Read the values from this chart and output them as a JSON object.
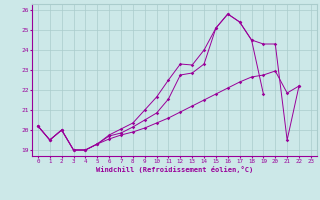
{
  "xlabel": "Windchill (Refroidissement éolien,°C)",
  "x": [
    0,
    1,
    2,
    3,
    4,
    5,
    6,
    7,
    8,
    9,
    10,
    11,
    12,
    13,
    14,
    15,
    16,
    17,
    18,
    19,
    20,
    21,
    22,
    23
  ],
  "line1": [
    20.2,
    19.5,
    20.0,
    19.0,
    19.0,
    19.3,
    19.7,
    19.85,
    20.15,
    20.5,
    20.85,
    21.55,
    22.75,
    22.85,
    23.3,
    25.1,
    25.8,
    25.4,
    24.5,
    21.8,
    null,
    null,
    null,
    null
  ],
  "line2": [
    20.2,
    19.5,
    20.0,
    19.0,
    19.0,
    19.3,
    19.75,
    20.05,
    20.35,
    21.0,
    21.65,
    22.5,
    23.3,
    23.25,
    24.0,
    25.1,
    25.8,
    25.4,
    24.5,
    24.3,
    24.3,
    19.5,
    22.2,
    null
  ],
  "line3": [
    20.2,
    19.5,
    20.0,
    19.0,
    19.0,
    19.3,
    19.55,
    19.75,
    19.9,
    20.1,
    20.35,
    20.6,
    20.9,
    21.2,
    21.5,
    21.8,
    22.1,
    22.4,
    22.65,
    22.75,
    22.95,
    21.85,
    22.2,
    null
  ],
  "color": "#990099",
  "bg_color": "#cce8e8",
  "ylim": [
    18.7,
    26.3
  ],
  "yticks": [
    19,
    20,
    21,
    22,
    23,
    24,
    25,
    26
  ],
  "xlim": [
    -0.5,
    23.5
  ],
  "grid_color": "#aacccc"
}
